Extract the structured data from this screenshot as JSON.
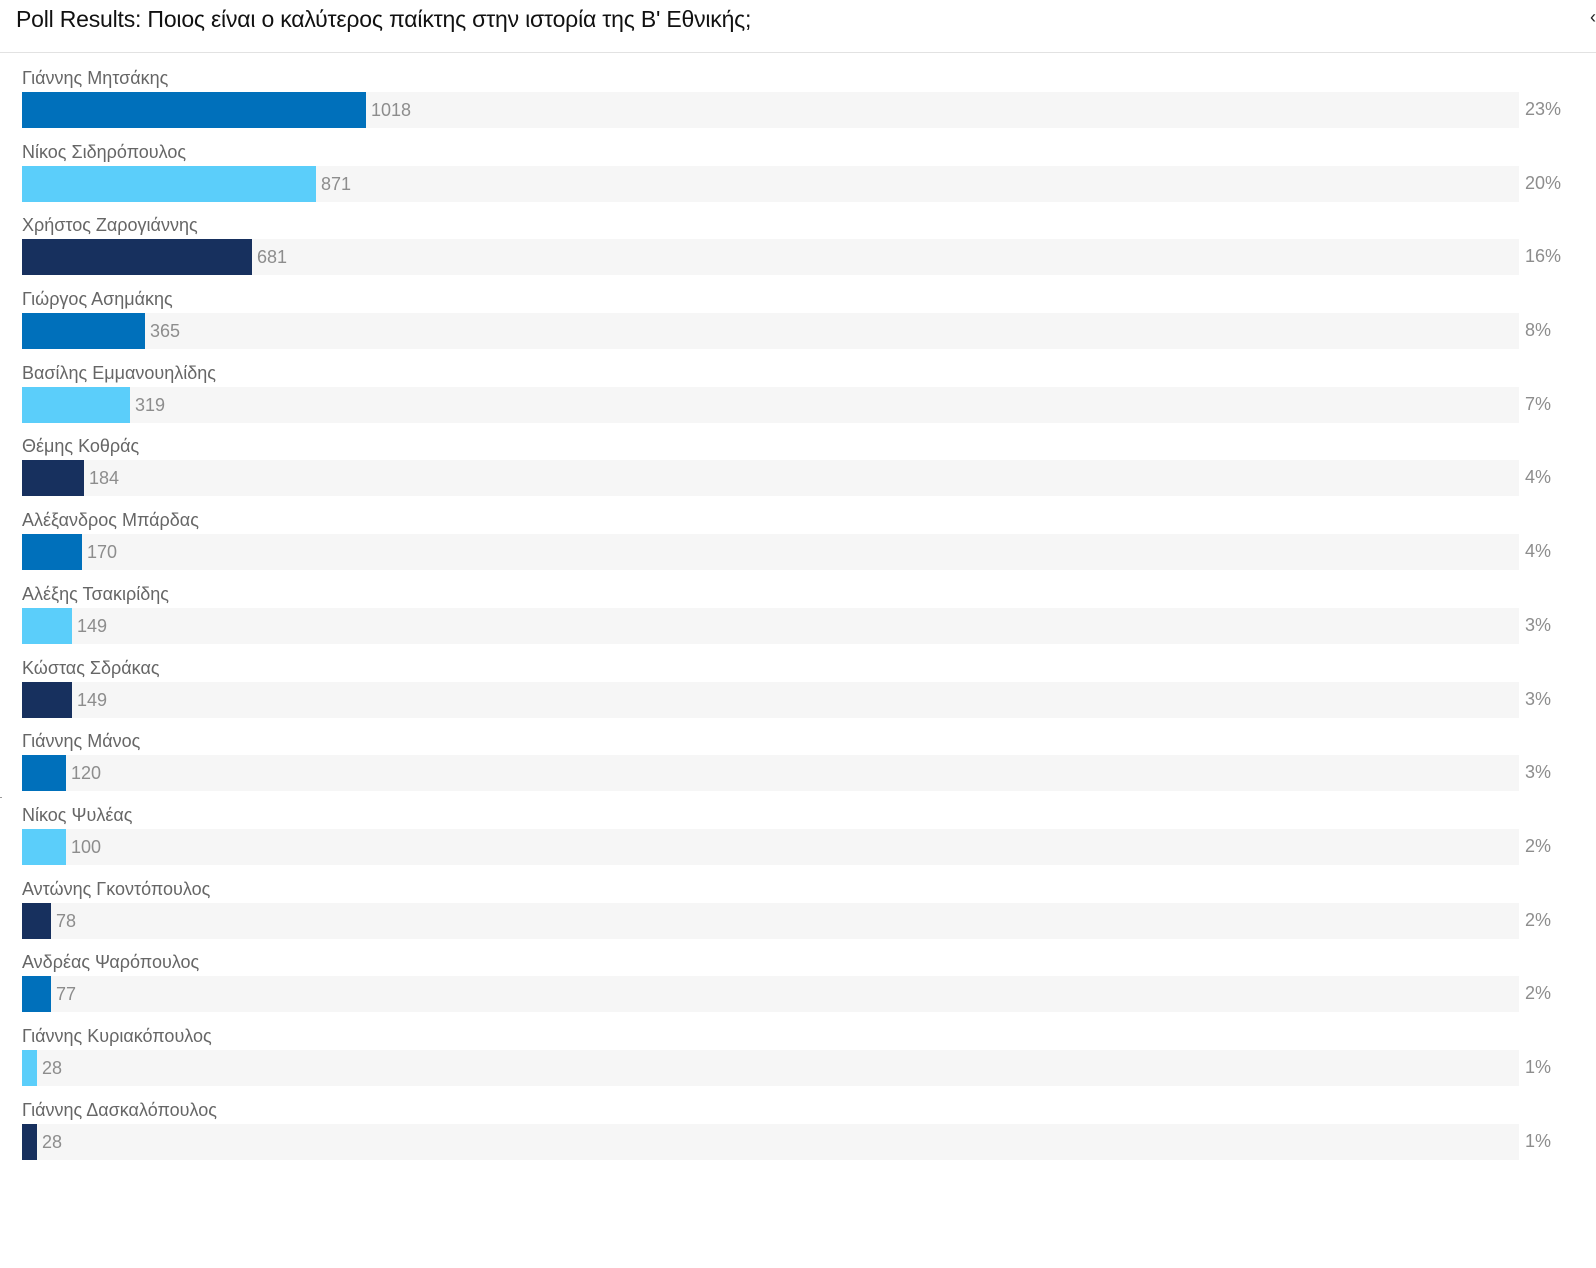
{
  "header": {
    "title": "Poll Results: Ποιος είναι ο καλύτερος παίκτης στην ιστορία της Β' Εθνικής;",
    "close_glyph": "‹"
  },
  "colors": {
    "track": "#f6f6f6",
    "palette": [
      "#0070bb",
      "#5bcefa",
      "#17305e"
    ],
    "label_text": "#666666",
    "value_text": "#8d8d8d"
  },
  "poll": {
    "max_votes": 1018,
    "options": [
      {
        "name": "Γιάννης Μητσάκης",
        "votes": "1018",
        "percent": "23%",
        "color": "#0070bb"
      },
      {
        "name": "Νίκος Σιδηρόπουλος",
        "votes": "871",
        "percent": "20%",
        "color": "#5bcefa"
      },
      {
        "name": "Χρήστος Ζαρογιάννης",
        "votes": "681",
        "percent": "16%",
        "color": "#17305e"
      },
      {
        "name": "Γιώργος Ασημάκης",
        "votes": "365",
        "percent": "8%",
        "color": "#0070bb"
      },
      {
        "name": "Βασίλης Εμμανουηλίδης",
        "votes": "319",
        "percent": "7%",
        "color": "#5bcefa"
      },
      {
        "name": "Θέμης Κοθράς",
        "votes": "184",
        "percent": "4%",
        "color": "#17305e"
      },
      {
        "name": "Αλέξανδρος Μπάρδας",
        "votes": "170",
        "percent": "4%",
        "color": "#0070bb"
      },
      {
        "name": "Αλέξης Τσακιρίδης",
        "votes": "149",
        "percent": "3%",
        "color": "#5bcefa"
      },
      {
        "name": "Κώστας Σδράκας",
        "votes": "149",
        "percent": "3%",
        "color": "#17305e"
      },
      {
        "name": "Γιάννης Μάνος",
        "votes": "120",
        "percent": "3%",
        "color": "#0070bb"
      },
      {
        "name": "Νίκος Ψυλέας",
        "votes": "100",
        "percent": "2%",
        "color": "#5bcefa"
      },
      {
        "name": "Αντώνης Γκοντόπουλος",
        "votes": "78",
        "percent": "2%",
        "color": "#17305e"
      },
      {
        "name": "Ανδρέας Ψαρόπουλος",
        "votes": "77",
        "percent": "2%",
        "color": "#0070bb"
      },
      {
        "name": "Γιάννης Κυριακόπουλος",
        "votes": "28",
        "percent": "1%",
        "color": "#5bcefa"
      },
      {
        "name": "Γιάννης Δασκαλόπουλος",
        "votes": "28",
        "percent": "1%",
        "color": "#17305e"
      }
    ]
  }
}
